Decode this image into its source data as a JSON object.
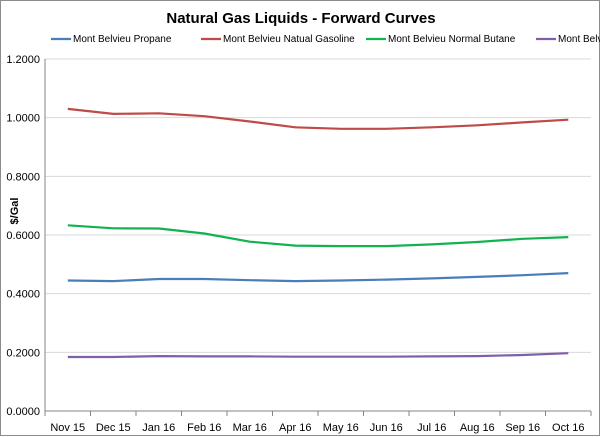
{
  "chart_data": {
    "type": "line",
    "title": "Natural Gas Liquids - Forward Curves",
    "ylabel": "$/Gal",
    "xlabel": "",
    "categories": [
      "Nov 15",
      "Dec 15",
      "Jan 16",
      "Feb 16",
      "Mar 16",
      "Apr 16",
      "May 16",
      "Jun 16",
      "Jul 16",
      "Aug 16",
      "Sep 16",
      "Oct 16"
    ],
    "ylim": [
      0,
      1.2
    ],
    "yticks": [
      "0.0000",
      "0.2000",
      "0.4000",
      "0.6000",
      "0.8000",
      "1.0000",
      "1.2000"
    ],
    "grid": "horizontal",
    "legend_position": "top",
    "series": [
      {
        "name": "Mont Belvieu Propane",
        "color": "#4a7ebb",
        "values": [
          0.445,
          0.443,
          0.45,
          0.45,
          0.446,
          0.443,
          0.445,
          0.448,
          0.452,
          0.457,
          0.463,
          0.47
        ]
      },
      {
        "name": "Mont Belvieu Natual Gasoline",
        "color": "#be4b48",
        "values": [
          1.03,
          1.013,
          1.015,
          1.005,
          0.987,
          0.967,
          0.962,
          0.962,
          0.967,
          0.974,
          0.984,
          0.993
        ]
      },
      {
        "name": "Mont Belvieu Normal Butane",
        "color": "#12b24f",
        "values": [
          0.633,
          0.623,
          0.622,
          0.605,
          0.577,
          0.564,
          0.562,
          0.562,
          0.568,
          0.576,
          0.587,
          0.593
        ]
      },
      {
        "name": "Mont Belvieu Ethane",
        "color": "#7f5fa8",
        "values": [
          0.184,
          0.184,
          0.187,
          0.186,
          0.186,
          0.185,
          0.185,
          0.185,
          0.186,
          0.187,
          0.191,
          0.197
        ]
      }
    ]
  }
}
